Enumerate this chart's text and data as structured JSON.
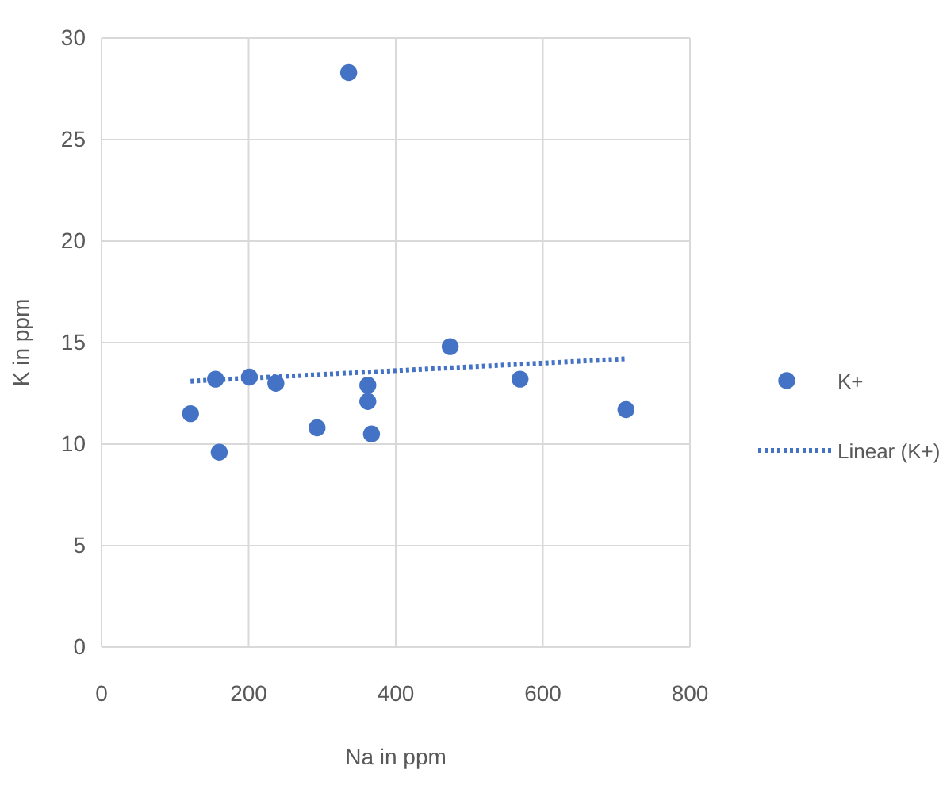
{
  "chart_data": {
    "type": "scatter",
    "xlabel": "Na in ppm",
    "ylabel": "K in ppm",
    "xlim": [
      0,
      800
    ],
    "xticks": [
      0,
      200,
      400,
      600,
      800
    ],
    "ylim": [
      0,
      30
    ],
    "yticks": [
      0,
      5,
      10,
      15,
      20,
      25,
      30
    ],
    "grid": true,
    "legend": "right",
    "series": [
      {
        "name": "K+",
        "marker": "circle",
        "color": "#4472c4",
        "x": [
          121,
          155,
          160,
          201,
          237,
          293,
          336,
          362,
          362,
          367,
          474,
          569,
          713
        ],
        "values": [
          11.5,
          13.2,
          9.6,
          13.3,
          13.0,
          10.8,
          28.3,
          12.9,
          12.1,
          10.5,
          14.8,
          13.2,
          11.7
        ]
      },
      {
        "name": "Linear (K+)",
        "type": "line",
        "color": "#4472c4",
        "line_style": "dotted",
        "x": [
          121,
          713
        ],
        "values": [
          13.1,
          14.2
        ]
      }
    ]
  }
}
